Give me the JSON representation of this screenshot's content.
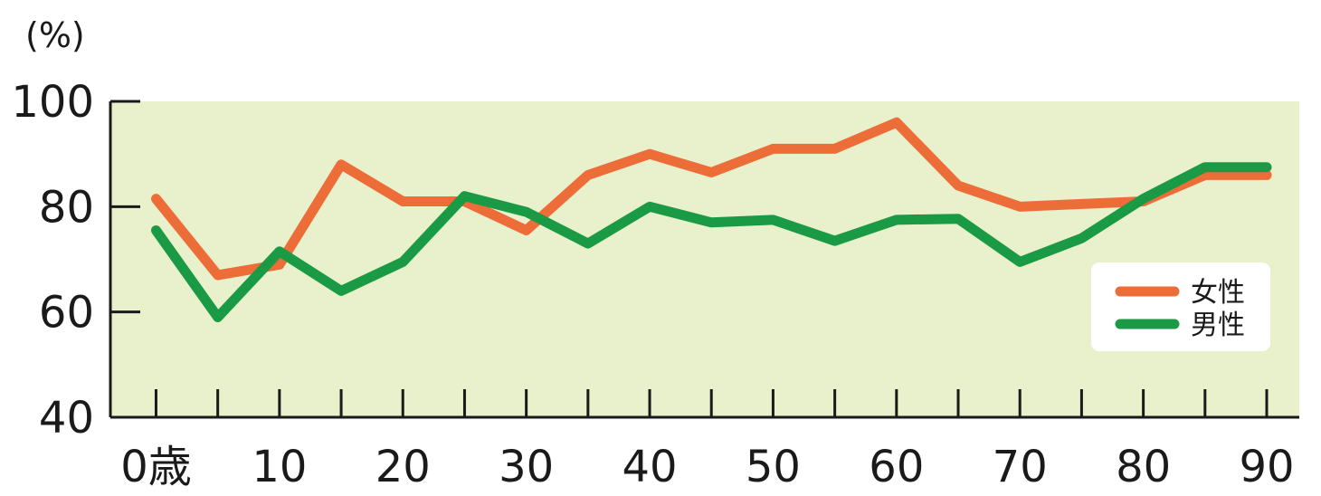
{
  "chart_data": {
    "type": "line",
    "y_unit": "(%)",
    "x": [
      0,
      5,
      10,
      15,
      20,
      25,
      30,
      35,
      40,
      45,
      50,
      55,
      60,
      65,
      70,
      75,
      80,
      85,
      90
    ],
    "xlim": [
      -3.7,
      90
    ],
    "x_ticks": [
      0,
      5,
      10,
      15,
      20,
      25,
      30,
      35,
      40,
      45,
      50,
      55,
      60,
      65,
      70,
      75,
      80,
      85,
      90
    ],
    "x_tick_labels": [
      {
        "x": 0,
        "label": "0歳"
      },
      {
        "x": 10,
        "label": "10"
      },
      {
        "x": 20,
        "label": "20"
      },
      {
        "x": 30,
        "label": "30"
      },
      {
        "x": 40,
        "label": "40"
      },
      {
        "x": 50,
        "label": "50"
      },
      {
        "x": 60,
        "label": "60"
      },
      {
        "x": 70,
        "label": "70"
      },
      {
        "x": 80,
        "label": "80"
      },
      {
        "x": 90,
        "label": "90"
      }
    ],
    "ylim": [
      40,
      100
    ],
    "y_ticks": [
      40,
      60,
      80,
      100
    ],
    "y_tick_labels": [
      "40",
      "60",
      "80",
      "100"
    ],
    "series": [
      {
        "name": "女性",
        "color": "#ec6d38",
        "values": [
          81.5,
          67,
          69,
          88,
          81,
          81,
          75.5,
          86,
          90,
          86.5,
          91,
          91,
          96,
          84,
          80,
          80.5,
          81,
          86,
          86
        ]
      },
      {
        "name": "男性",
        "color": "#1b9a46",
        "values": [
          75.5,
          59,
          71.5,
          64,
          69.5,
          82,
          79,
          73,
          80,
          77,
          77.5,
          73.5,
          77.5,
          77.7,
          69.5,
          74,
          81.5,
          87.5,
          87.5
        ]
      }
    ],
    "plot_background": "#e8f0cc",
    "grid": false,
    "legend_position": "bottom-right"
  }
}
